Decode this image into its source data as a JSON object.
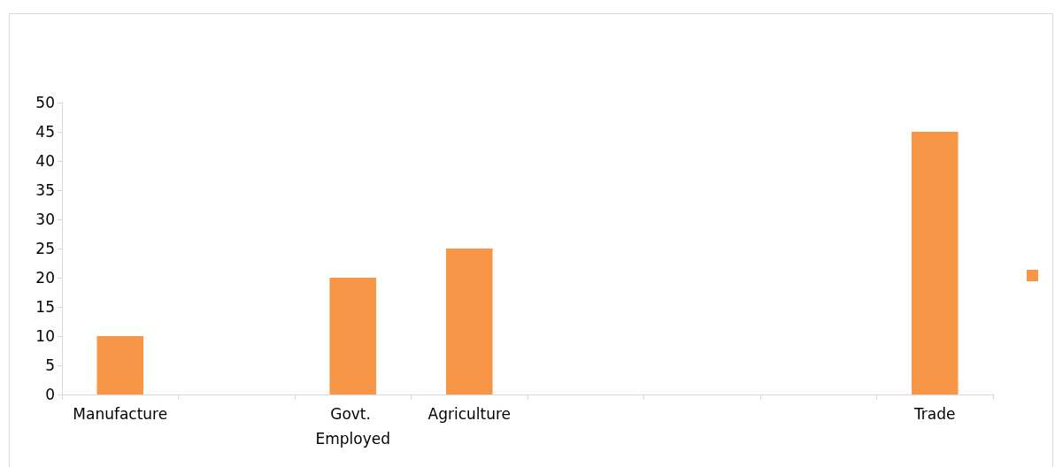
{
  "chart_data": {
    "type": "bar",
    "categories": [
      "Manufacture",
      null,
      "Govt. Employed",
      "Agriculture",
      null,
      null,
      null,
      "Trade"
    ],
    "series": [
      {
        "color": "#f79646",
        "values": [
          10,
          null,
          20,
          25,
          null,
          null,
          null,
          45
        ]
      }
    ],
    "ylim": [
      0,
      50
    ],
    "yticks": [
      0,
      5,
      10,
      15,
      20,
      25,
      30,
      35,
      40,
      45,
      50
    ],
    "grid": false
  }
}
